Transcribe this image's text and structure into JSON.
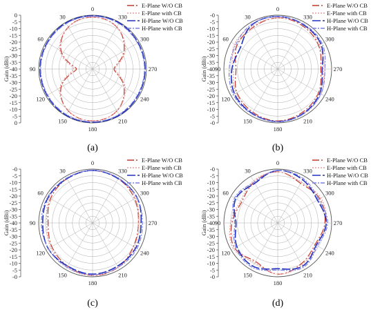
{
  "figure": {
    "background": "#ffffff",
    "panel_labels": [
      "(a)",
      "(b)",
      "(c)",
      "(d)"
    ],
    "ylabel": "Gain (dBi)",
    "angle_ticks": [
      "0",
      "30",
      "60",
      "90",
      "120",
      "150",
      "180",
      "210",
      "240",
      "270",
      "300",
      "330"
    ],
    "radial_ticks": [
      "-0",
      "-5",
      "-10",
      "-15",
      "-20",
      "-25",
      "-30",
      "-35",
      "-40"
    ],
    "radial_tick_labels_panel_a": [
      "0",
      "-5",
      "-10",
      "-15",
      "-20",
      "-25",
      "-30",
      "-35",
      "-40"
    ]
  },
  "legend": [
    {
      "label": "E-Plane W/O CB",
      "color": "#c0392b",
      "dash": "10,3,2,3"
    },
    {
      "label": "E-Plane with CB",
      "color": "#e79a9a",
      "dash": "2,2"
    },
    {
      "label": "H-Plane W/O CB",
      "color": "#1f2fbf",
      "dash": "12,3"
    },
    {
      "label": "H-Plane with CB",
      "color": "#7a7fe0",
      "dash": "6,2,2,2"
    }
  ],
  "chart_data": [
    {
      "type": "polar-line",
      "panel": "(a)",
      "theta_unit": "degrees",
      "r_range": [
        -40,
        0
      ],
      "angles": [
        0,
        30,
        60,
        90,
        120,
        150,
        180,
        210,
        240,
        270,
        300,
        330
      ],
      "series": [
        {
          "name": "E-Plane W/O CB",
          "values": [
            -1.5,
            -4,
            -13,
            -28,
            -13,
            -4,
            -1.5,
            -4,
            -13,
            -24,
            -13,
            -4
          ]
        },
        {
          "name": "E-Plane with CB",
          "values": [
            -1.5,
            -4,
            -12,
            -26,
            -12,
            -4,
            -1.5,
            -4,
            -12,
            -23,
            -12,
            -4
          ]
        },
        {
          "name": "H-Plane W/O CB",
          "values": [
            -0.5,
            -0.5,
            -1,
            -1,
            -1,
            -0.5,
            -0.5,
            -0.5,
            -1,
            -1,
            -1,
            -0.5
          ]
        },
        {
          "name": "H-Plane with CB",
          "values": [
            -0.8,
            -1,
            -1.5,
            -1.5,
            -1.5,
            -1,
            -0.8,
            -1,
            -1.5,
            -1.5,
            -1.5,
            -1
          ]
        }
      ]
    },
    {
      "type": "polar-line",
      "panel": "(b)",
      "theta_unit": "degrees",
      "r_range": [
        -40,
        0
      ],
      "angles": [
        0,
        30,
        60,
        90,
        120,
        150,
        180,
        210,
        240,
        270,
        300,
        330
      ],
      "series": [
        {
          "name": "E-Plane W/O CB",
          "values": [
            -2,
            -4,
            -5,
            -9,
            -5,
            -3,
            -1.5,
            -3,
            -5,
            -8,
            -5,
            -3
          ]
        },
        {
          "name": "E-Plane with CB",
          "values": [
            -2,
            -3,
            -3,
            -7,
            -4,
            -2,
            -1,
            -2,
            -3,
            -6,
            -4,
            -2
          ]
        },
        {
          "name": "H-Plane W/O CB",
          "values": [
            -1,
            -2,
            -8,
            -6,
            -3,
            -2,
            -1,
            -2,
            -4,
            -7,
            -3,
            -2
          ]
        },
        {
          "name": "H-Plane with CB",
          "values": [
            -1,
            -1.5,
            -4,
            -4,
            -2,
            -1.5,
            -1,
            -1.5,
            -3,
            -5,
            -2,
            -1.5
          ]
        }
      ]
    },
    {
      "type": "polar-line",
      "panel": "(c)",
      "theta_unit": "degrees",
      "r_range": [
        -40,
        0
      ],
      "angles": [
        0,
        30,
        60,
        90,
        120,
        150,
        180,
        210,
        240,
        270,
        300,
        330
      ],
      "series": [
        {
          "name": "E-Plane W/O CB",
          "values": [
            -1,
            -2,
            -4,
            -7,
            -5,
            -3,
            -1,
            -2,
            -5,
            -6,
            -4,
            -2
          ]
        },
        {
          "name": "E-Plane with CB",
          "values": [
            -1,
            -1.5,
            -3,
            -6,
            -4,
            -2,
            -1,
            -2,
            -4,
            -6,
            -3,
            -2
          ]
        },
        {
          "name": "H-Plane W/O CB",
          "values": [
            -1,
            -2,
            -2,
            -3,
            -2,
            -3,
            -2,
            -3,
            -3,
            -4,
            -2,
            -2
          ]
        },
        {
          "name": "H-Plane with CB",
          "values": [
            -1,
            -1.5,
            -1.5,
            -2,
            -2,
            -2,
            -1.5,
            -2,
            -2,
            -3,
            -2,
            -1.5
          ]
        }
      ]
    },
    {
      "type": "polar-line",
      "panel": "(d)",
      "theta_unit": "degrees",
      "r_range": [
        -40,
        0
      ],
      "angles": [
        0,
        30,
        60,
        90,
        120,
        150,
        180,
        210,
        240,
        270,
        300,
        330
      ],
      "series": [
        {
          "name": "E-Plane W/O CB",
          "values": [
            -2,
            -5,
            -9,
            -6,
            -3,
            -7,
            -2,
            -5,
            -8,
            -5,
            -4,
            -6
          ]
        },
        {
          "name": "E-Plane with CB",
          "values": [
            -2,
            -4,
            -8,
            -5,
            -2,
            -6,
            -2,
            -4,
            -7,
            -4,
            -3,
            -5
          ]
        },
        {
          "name": "H-Plane W/O CB",
          "values": [
            -1,
            -6,
            -4,
            -9,
            -5,
            -3,
            -6,
            -3,
            -7,
            -4,
            -6,
            -3
          ]
        },
        {
          "name": "H-Plane with CB",
          "values": [
            -1,
            -5,
            -3,
            -8,
            -4,
            -2,
            -5,
            -2,
            -6,
            -3,
            -5,
            -2
          ]
        }
      ]
    }
  ]
}
